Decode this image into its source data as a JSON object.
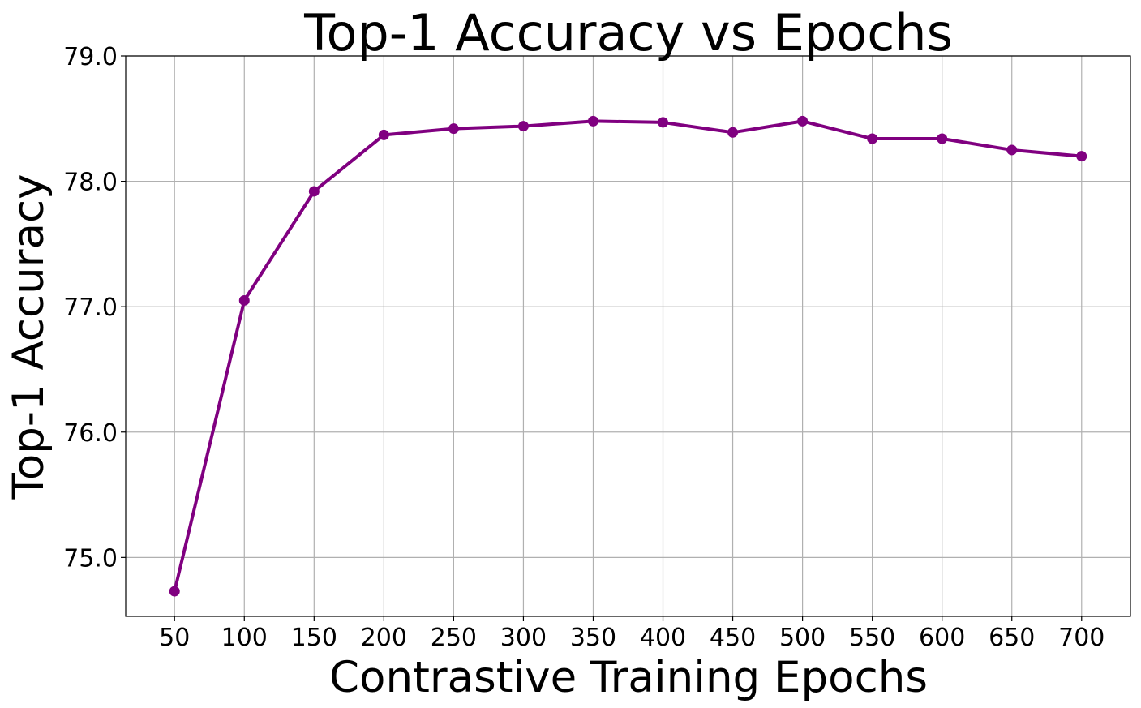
{
  "chart_data": {
    "type": "line",
    "title": "Top-1 Accuracy vs Epochs",
    "xlabel": "Contrastive Training Epochs",
    "ylabel": "Top-1 Accuracy",
    "x": [
      50,
      100,
      150,
      200,
      250,
      300,
      350,
      400,
      450,
      500,
      550,
      600,
      650,
      700
    ],
    "series": [
      {
        "name": "Top-1 Accuracy",
        "color": "#800080",
        "marker": "circle",
        "values": [
          74.73,
          77.05,
          77.92,
          78.37,
          78.42,
          78.44,
          78.48,
          78.47,
          78.39,
          78.48,
          78.34,
          78.34,
          78.25,
          78.2
        ]
      }
    ],
    "xlim": [
      15,
      735
    ],
    "ylim": [
      74.53,
      79.0
    ],
    "xticks": [
      "50",
      "100",
      "150",
      "200",
      "250",
      "300",
      "350",
      "400",
      "450",
      "500",
      "550",
      "600",
      "650",
      "700"
    ],
    "yticks": [
      {
        "value": 75.0,
        "label": "75.0"
      },
      {
        "value": 76.0,
        "label": "76.0"
      },
      {
        "value": 77.0,
        "label": "77.0"
      },
      {
        "value": 78.0,
        "label": "78.0"
      },
      {
        "value": 79.0,
        "label": "79.0"
      }
    ],
    "grid": true,
    "legend": "none"
  }
}
